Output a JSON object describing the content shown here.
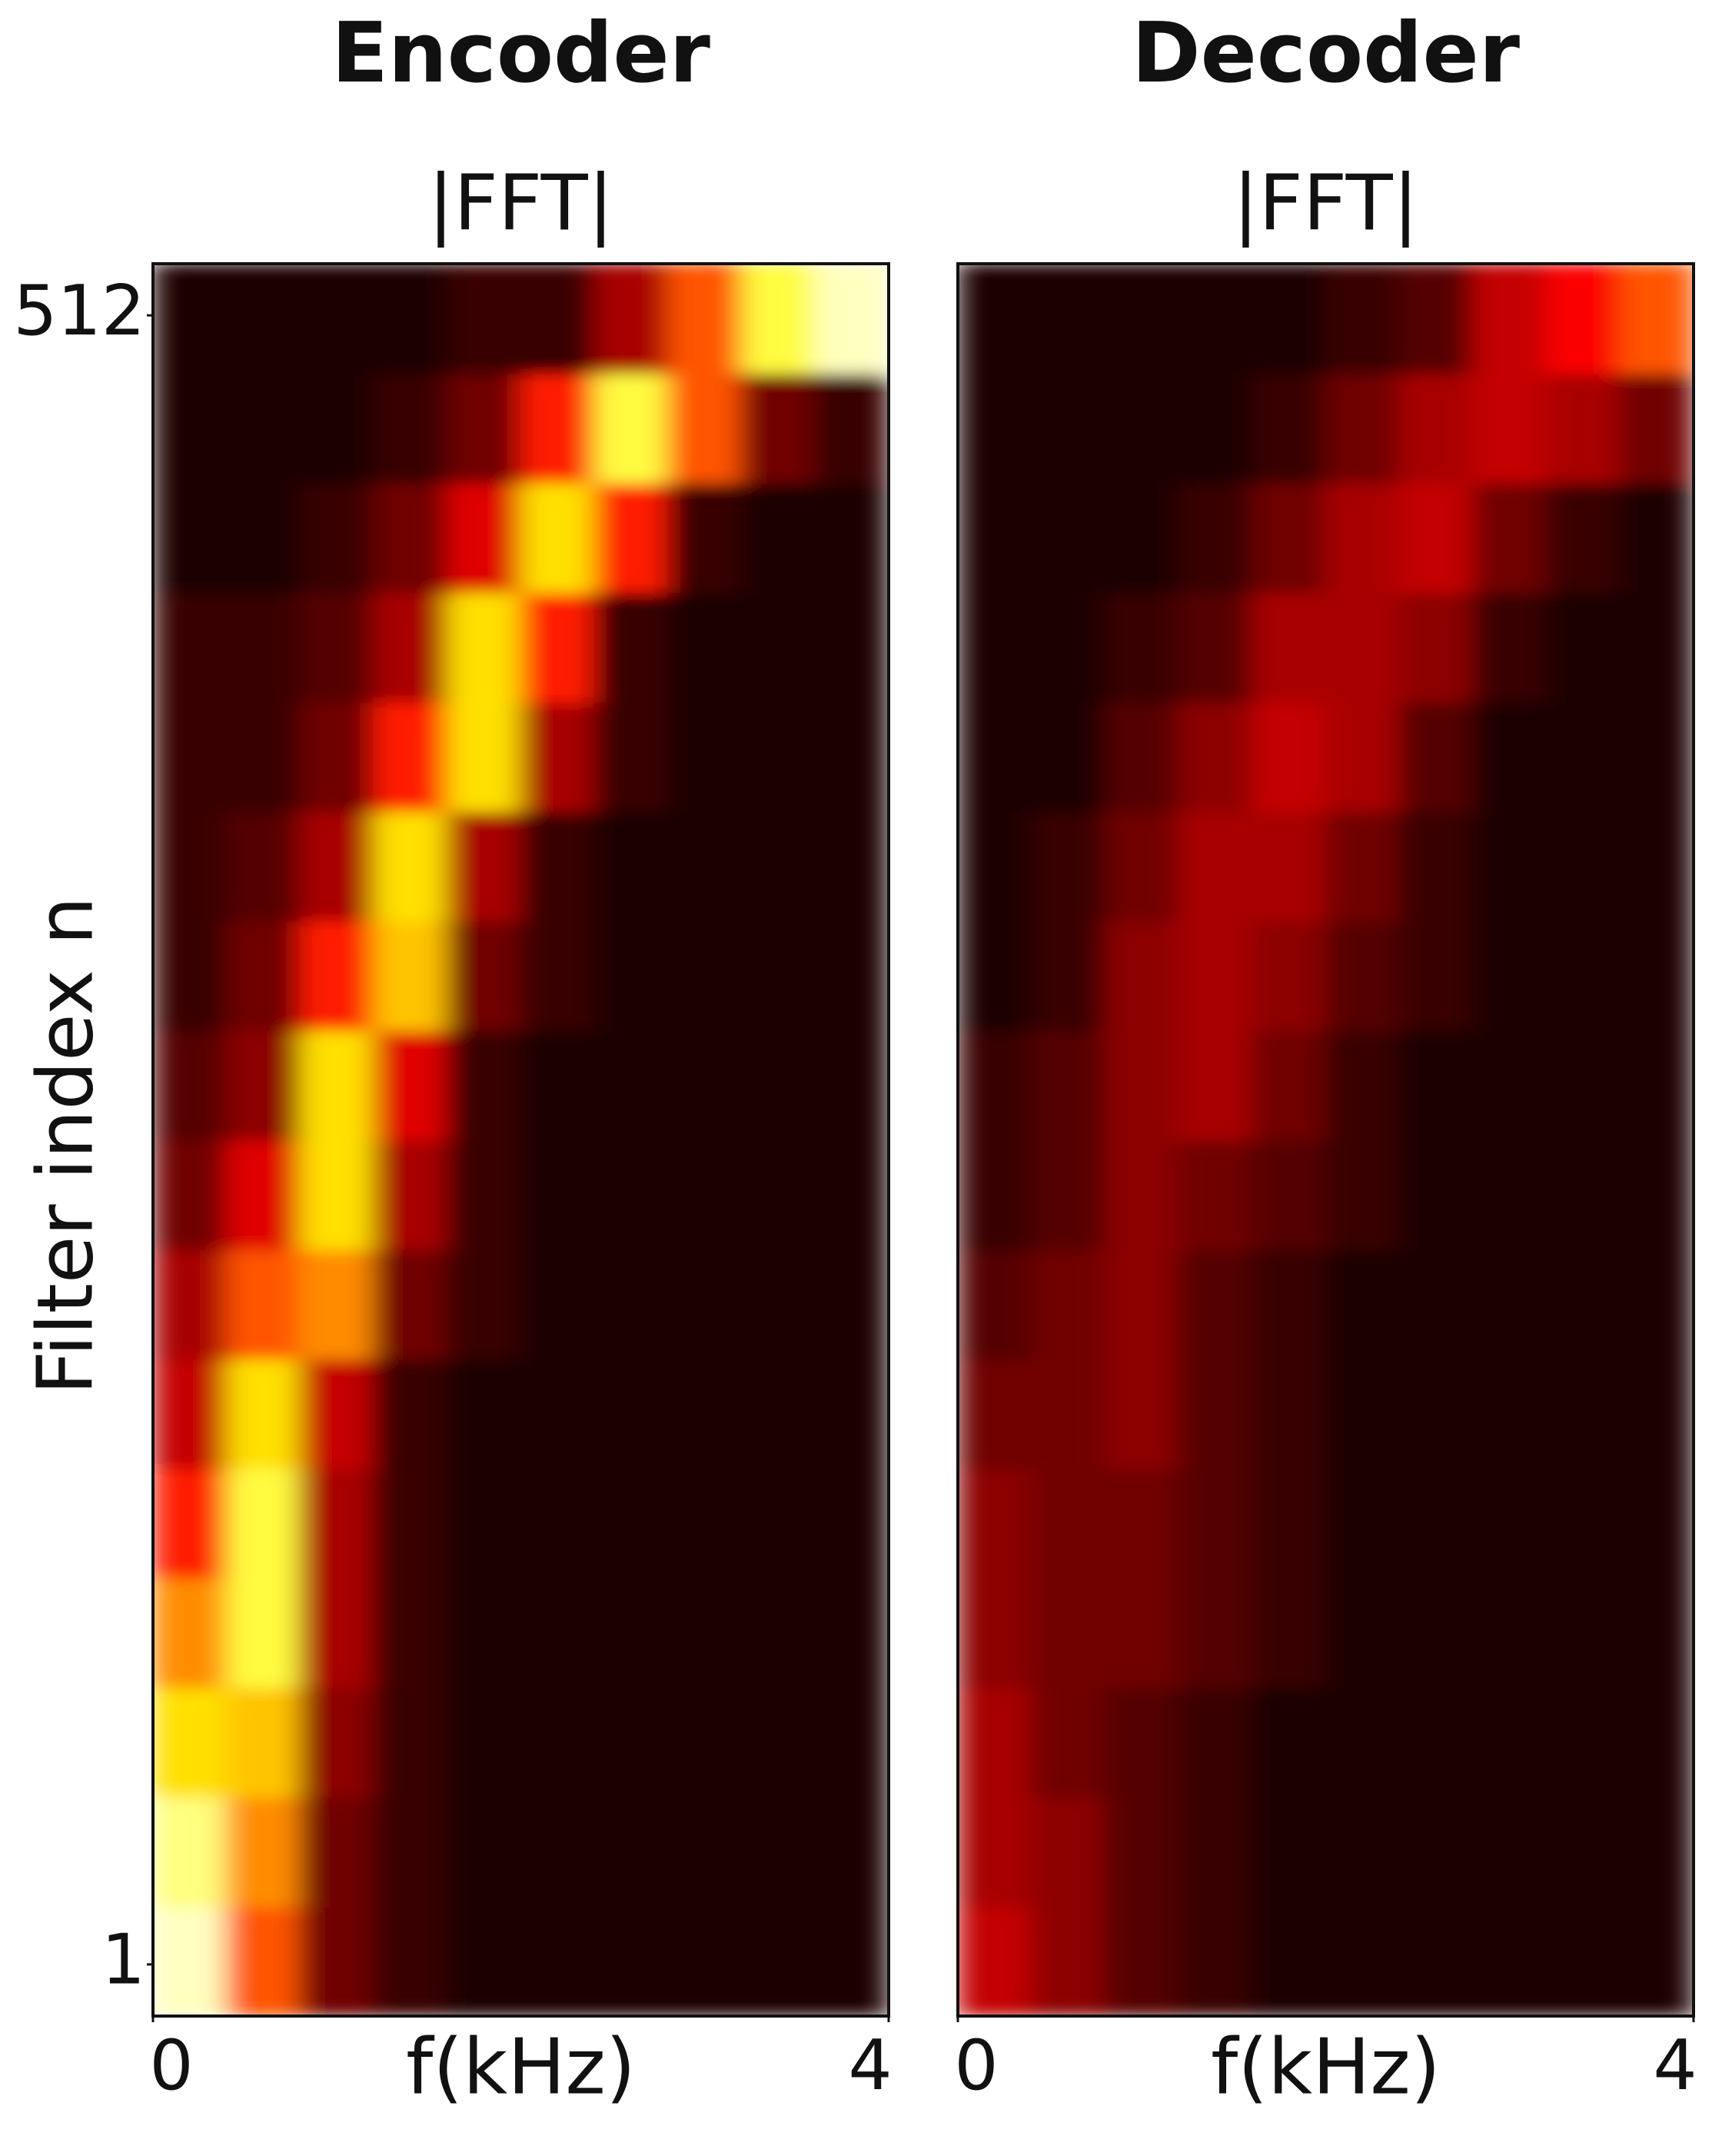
{
  "chart_data": [
    {
      "type": "heatmap",
      "title": "Encoder",
      "subtitle": "|FFT|",
      "x_label": "f(kHz)",
      "y_label": "Filter index n",
      "xlim": [
        0,
        4
      ],
      "xticks": [
        0,
        4
      ],
      "ylim": [
        -15,
        528
      ],
      "yticks": [
        1,
        512
      ],
      "matrix": [
        [
          1.0,
          0.6,
          0.2,
          0.1,
          0.05,
          0.05,
          0.05,
          0.05,
          0.05,
          0.05
        ],
        [
          0.95,
          0.7,
          0.2,
          0.1,
          0.05,
          0.05,
          0.05,
          0.05,
          0.05,
          0.05
        ],
        [
          0.85,
          0.8,
          0.25,
          0.1,
          0.05,
          0.05,
          0.05,
          0.05,
          0.05,
          0.05
        ],
        [
          0.7,
          0.9,
          0.3,
          0.1,
          0.05,
          0.05,
          0.05,
          0.05,
          0.05,
          0.05
        ],
        [
          0.5,
          0.9,
          0.3,
          0.1,
          0.05,
          0.05,
          0.05,
          0.05,
          0.05,
          0.05
        ],
        [
          0.35,
          0.85,
          0.35,
          0.1,
          0.05,
          0.05,
          0.05,
          0.05,
          0.05,
          0.05
        ],
        [
          0.3,
          0.6,
          0.7,
          0.2,
          0.1,
          0.05,
          0.05,
          0.05,
          0.05,
          0.05
        ],
        [
          0.2,
          0.4,
          0.85,
          0.3,
          0.1,
          0.05,
          0.05,
          0.05,
          0.05,
          0.05
        ],
        [
          0.15,
          0.25,
          0.85,
          0.4,
          0.1,
          0.05,
          0.05,
          0.05,
          0.05,
          0.05
        ],
        [
          0.1,
          0.2,
          0.5,
          0.8,
          0.2,
          0.1,
          0.05,
          0.05,
          0.05,
          0.05
        ],
        [
          0.1,
          0.15,
          0.3,
          0.85,
          0.3,
          0.1,
          0.05,
          0.05,
          0.05,
          0.05
        ],
        [
          0.1,
          0.1,
          0.2,
          0.5,
          0.85,
          0.3,
          0.1,
          0.05,
          0.05,
          0.05
        ],
        [
          0.1,
          0.1,
          0.15,
          0.3,
          0.85,
          0.5,
          0.1,
          0.05,
          0.05,
          0.05
        ],
        [
          0.05,
          0.05,
          0.1,
          0.2,
          0.4,
          0.85,
          0.5,
          0.1,
          0.05,
          0.05
        ],
        [
          0.05,
          0.05,
          0.05,
          0.1,
          0.2,
          0.5,
          0.9,
          0.6,
          0.2,
          0.1
        ],
        [
          0.05,
          0.05,
          0.05,
          0.05,
          0.1,
          0.1,
          0.3,
          0.6,
          0.9,
          1.0
        ]
      ]
    },
    {
      "type": "heatmap",
      "title": "Decoder",
      "subtitle": "|FFT|",
      "x_label": "f(kHz)",
      "xlim": [
        0,
        4
      ],
      "xticks": [
        0,
        4
      ],
      "ylim": [
        -15,
        528
      ],
      "matrix": [
        [
          0.35,
          0.25,
          0.15,
          0.1,
          0.05,
          0.05,
          0.05,
          0.05,
          0.05,
          0.05
        ],
        [
          0.3,
          0.25,
          0.15,
          0.1,
          0.05,
          0.05,
          0.05,
          0.05,
          0.05,
          0.05
        ],
        [
          0.3,
          0.2,
          0.15,
          0.1,
          0.05,
          0.05,
          0.05,
          0.05,
          0.05,
          0.05
        ],
        [
          0.25,
          0.2,
          0.2,
          0.15,
          0.1,
          0.05,
          0.05,
          0.05,
          0.05,
          0.05
        ],
        [
          0.25,
          0.2,
          0.2,
          0.15,
          0.1,
          0.05,
          0.05,
          0.05,
          0.05,
          0.05
        ],
        [
          0.2,
          0.2,
          0.25,
          0.15,
          0.1,
          0.05,
          0.05,
          0.05,
          0.05,
          0.05
        ],
        [
          0.15,
          0.2,
          0.25,
          0.15,
          0.1,
          0.05,
          0.05,
          0.05,
          0.05,
          0.05
        ],
        [
          0.1,
          0.15,
          0.25,
          0.2,
          0.15,
          0.1,
          0.05,
          0.05,
          0.05,
          0.05
        ],
        [
          0.1,
          0.15,
          0.25,
          0.3,
          0.2,
          0.1,
          0.05,
          0.05,
          0.05,
          0.05
        ],
        [
          0.05,
          0.1,
          0.25,
          0.3,
          0.25,
          0.15,
          0.1,
          0.05,
          0.05,
          0.05
        ],
        [
          0.05,
          0.1,
          0.2,
          0.3,
          0.3,
          0.2,
          0.1,
          0.05,
          0.05,
          0.05
        ],
        [
          0.05,
          0.05,
          0.15,
          0.25,
          0.35,
          0.3,
          0.15,
          0.05,
          0.05,
          0.05
        ],
        [
          0.05,
          0.05,
          0.1,
          0.15,
          0.3,
          0.3,
          0.25,
          0.1,
          0.05,
          0.05
        ],
        [
          0.05,
          0.05,
          0.05,
          0.1,
          0.2,
          0.3,
          0.35,
          0.2,
          0.1,
          0.05
        ],
        [
          0.05,
          0.05,
          0.05,
          0.05,
          0.1,
          0.2,
          0.3,
          0.35,
          0.3,
          0.2
        ],
        [
          0.05,
          0.05,
          0.05,
          0.05,
          0.05,
          0.1,
          0.15,
          0.35,
          0.45,
          0.6
        ]
      ]
    }
  ]
}
